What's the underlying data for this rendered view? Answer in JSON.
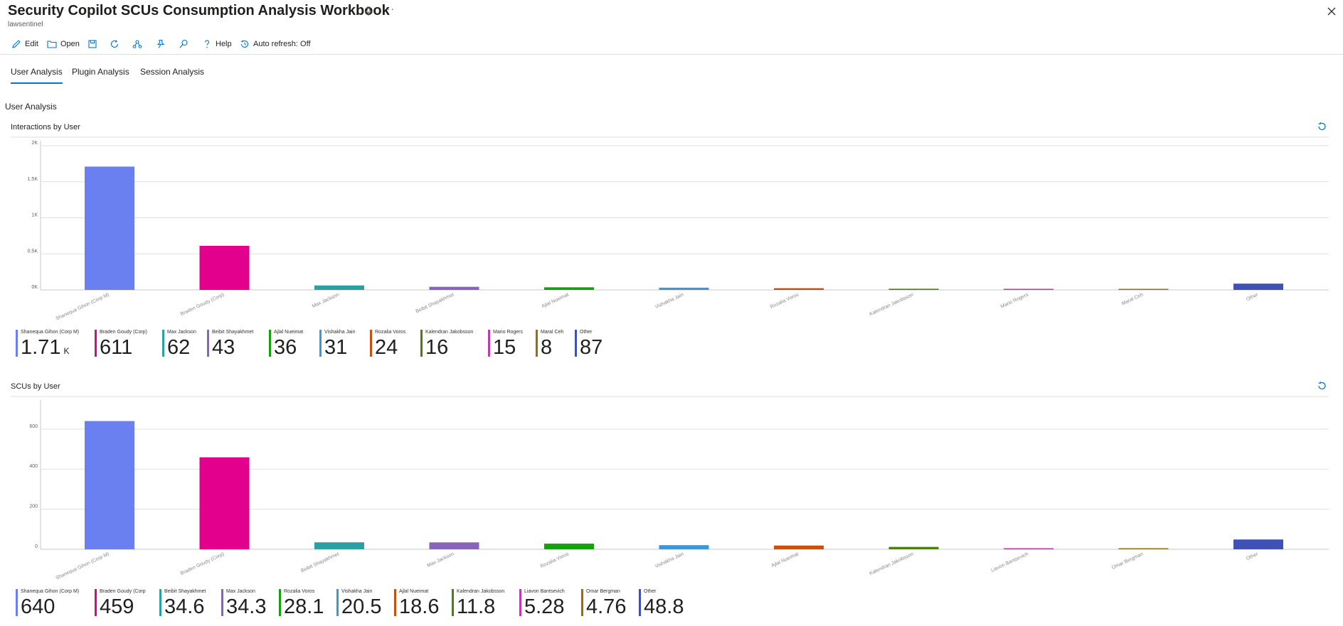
{
  "header": {
    "title": "Security Copilot SCUs Consumption Analysis Workbook",
    "subtitle": "lawsentinel",
    "more": "···"
  },
  "toolbar": {
    "edit": "Edit",
    "open": "Open",
    "help": "Help",
    "auto_refresh": "Auto refresh: Off"
  },
  "tabs": [
    "User Analysis",
    "Plugin Analysis",
    "Session Analysis"
  ],
  "section_title": "User Analysis",
  "colors": [
    "#6a80f0",
    "#e3008c",
    "#2aa0a4",
    "#8764b8",
    "#13a10e",
    "#3a96dd",
    "#ca5010",
    "#498205",
    "#c239b3",
    "#986f0b",
    "#3f51b5"
  ],
  "chart_data": [
    {
      "type": "bar",
      "title": "Interactions by User",
      "categories": [
        "Shanequa Gihon (Corp M)",
        "Braden Goudy (Corp)",
        "Max Jackson",
        "Beibit Shayakhmet",
        "Ajlal Nueimat",
        "Vishakha Jain",
        "Rozalia Voros",
        "Kalendran Jakobsson",
        "Mario Rogers",
        "Maral Ceh",
        "Other"
      ],
      "values": [
        1710,
        611,
        62,
        43,
        36,
        31,
        24,
        16,
        15,
        8,
        87
      ],
      "yticks": [
        "0K",
        "0.5K",
        "1K",
        "1.5K",
        "2K"
      ],
      "ylim": [
        0,
        2000
      ],
      "grid": true,
      "tiles": [
        {
          "label": "Shanequa Gihon (Corp M)",
          "value": "1.71",
          "unit": "K"
        },
        {
          "label": "Braden Goudy (Corp)",
          "value": "611"
        },
        {
          "label": "Max Jackson",
          "value": "62"
        },
        {
          "label": "Beibit Shayakhmet",
          "value": "43"
        },
        {
          "label": "Ajlal Nueimat",
          "value": "36"
        },
        {
          "label": "Vishakha Jain",
          "value": "31"
        },
        {
          "label": "Rozalia Voros",
          "value": "24"
        },
        {
          "label": "Kalendran Jakobsson",
          "value": "16"
        },
        {
          "label": "Mario Rogers",
          "value": "15"
        },
        {
          "label": "Maral Ceh",
          "value": "8"
        },
        {
          "label": "Other",
          "value": "87"
        }
      ]
    },
    {
      "type": "bar",
      "title": "SCUs by User",
      "categories": [
        "Shanequa Gihon (Corp M)",
        "Braden Goudy (Corp)",
        "Beibit Shayakhmet",
        "Max Jackson",
        "Rozalia Voros",
        "Vishakha Jain",
        "Ajlal Nueimat",
        "Kalendran Jakobsson",
        "Liavon Bantsevich",
        "Omar Bergman",
        "Other"
      ],
      "values": [
        640,
        459,
        34.6,
        34.3,
        28.1,
        20.5,
        18.6,
        11.8,
        5.28,
        4.76,
        48.8
      ],
      "yticks": [
        "0",
        "200",
        "400",
        "600"
      ],
      "ylim": [
        0,
        720
      ],
      "grid": true,
      "tiles": [
        {
          "label": "Shanequa Gihon (Corp M)",
          "value": "640"
        },
        {
          "label": "Braden Goudy (Corp",
          "value": "459"
        },
        {
          "label": "Beibit Shayakhmet",
          "value": "34.6"
        },
        {
          "label": "Max Jackson",
          "value": "34.3"
        },
        {
          "label": "Rozalia Voros",
          "value": "28.1"
        },
        {
          "label": "Vishakha Jain",
          "value": "20.5"
        },
        {
          "label": "Ajlal Nueimat",
          "value": "18.6"
        },
        {
          "label": "Kalendran Jakobsson",
          "value": "11.8"
        },
        {
          "label": "Liavon Bantsevich",
          "value": "5.28"
        },
        {
          "label": "Omar Bergman",
          "value": "4.76"
        },
        {
          "label": "Other",
          "value": "48.8"
        }
      ]
    }
  ]
}
